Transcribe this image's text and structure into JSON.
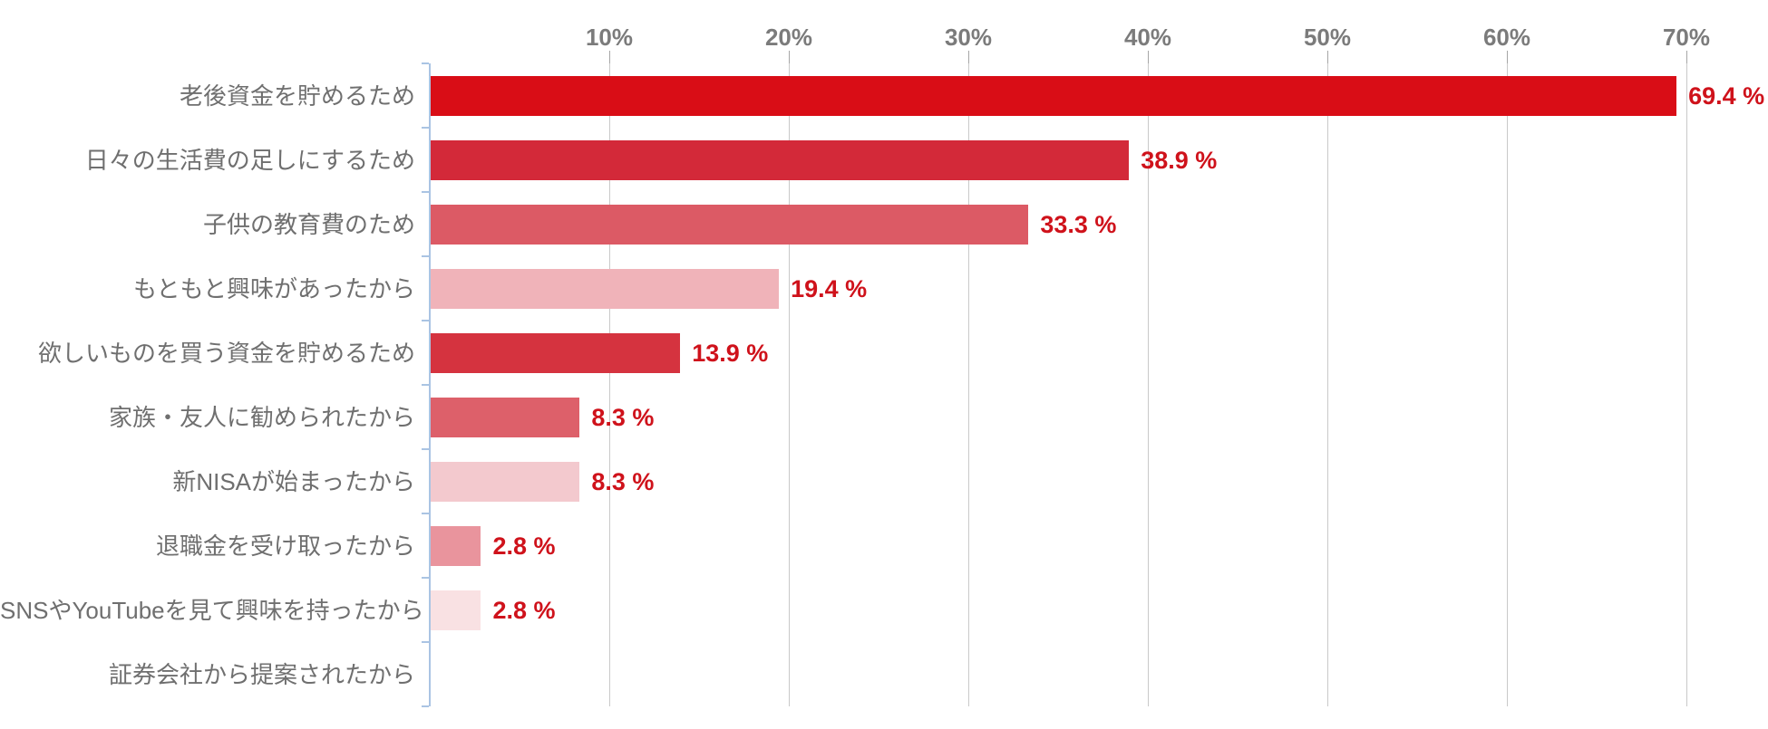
{
  "chart_data": {
    "type": "bar",
    "orientation": "horizontal",
    "title": "",
    "xlabel": "",
    "ylabel": "",
    "unit": "%",
    "xlim": [
      0,
      74.5
    ],
    "grid": "vertical",
    "legend": "none",
    "x_ticks": [
      10,
      20,
      30,
      40,
      50,
      60,
      70
    ],
    "x_tick_labels": [
      "10%",
      "20%",
      "30%",
      "40%",
      "50%",
      "60%",
      "70%"
    ],
    "categories": [
      "老後資金を貯めるため",
      "日々の生活費の足しにするため",
      "子供の教育費のため",
      "もともと興味があったから",
      "欲しいものを買う資金を貯めるため",
      "家族・友人に勧められたから",
      "新NISAが始まったから",
      "退職金を受け取ったから",
      "SNSやYouTubeを見て興味を持ったから",
      "証券会社から提案されたから"
    ],
    "values": [
      69.4,
      38.9,
      33.3,
      19.4,
      13.9,
      8.3,
      8.3,
      2.8,
      2.8,
      0
    ],
    "value_labels": [
      "69.4 %",
      "38.9 %",
      "33.3 %",
      "19.4 %",
      "13.9 %",
      "8.3 %",
      "8.3 %",
      "2.8 %",
      "2.8 %",
      ""
    ],
    "bar_colors": [
      "#d90d16",
      "#d32939",
      "#dc5a65",
      "#f0b3b9",
      "#d5333f",
      "#dd606a",
      "#f3c9ce",
      "#e9949d",
      "#f9e1e3",
      "#ffffff"
    ]
  },
  "colors": {
    "background": "#ffffff",
    "value_label": "#cf121b",
    "axis_tick_label": "#7b7b7b",
    "category_label": "#6f6f6f",
    "gridline": "#c9c9c9",
    "tick_stub": "#a6a6a6",
    "y_axis_line": "#aac4e3"
  }
}
